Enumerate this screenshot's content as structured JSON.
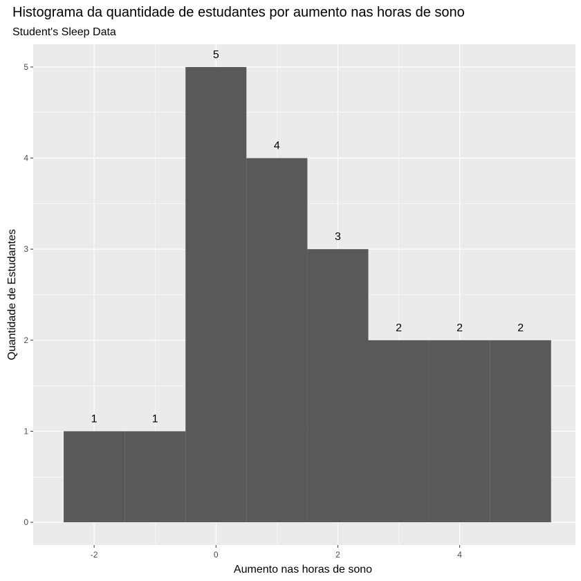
{
  "chart_data": {
    "type": "bar",
    "title": "Histograma da quantidade de estudantes por aumento nas horas de sono",
    "subtitle": "Student's Sleep Data",
    "xlabel": "Aumento nas horas de sono",
    "ylabel": "Quantidade de Estudantes",
    "xlim": [
      -3.0,
      5.9
    ],
    "ylim": [
      -0.25,
      5.25
    ],
    "x_ticks": [
      -2,
      0,
      2,
      4
    ],
    "y_ticks": [
      0,
      1,
      2,
      3,
      4,
      5
    ],
    "grid": true,
    "bins": [
      {
        "center": -2,
        "x0": -2.5,
        "x1": -1.5,
        "count": 1
      },
      {
        "center": -1,
        "x0": -1.5,
        "x1": -0.5,
        "count": 1
      },
      {
        "center": 0,
        "x0": -0.5,
        "x1": 0.5,
        "count": 5
      },
      {
        "center": 1,
        "x0": 0.5,
        "x1": 1.5,
        "count": 4
      },
      {
        "center": 2,
        "x0": 1.5,
        "x1": 2.5,
        "count": 3
      },
      {
        "center": 3,
        "x0": 2.5,
        "x1": 3.5,
        "count": 2
      },
      {
        "center": 4,
        "x0": 3.5,
        "x1": 4.5,
        "count": 2
      },
      {
        "center": 5,
        "x0": 4.5,
        "x1": 5.5,
        "count": 2
      }
    ],
    "colors": {
      "bar": "#595959",
      "panel": "#ebebeb",
      "grid_major": "#ffffff",
      "tick": "#333333"
    }
  }
}
